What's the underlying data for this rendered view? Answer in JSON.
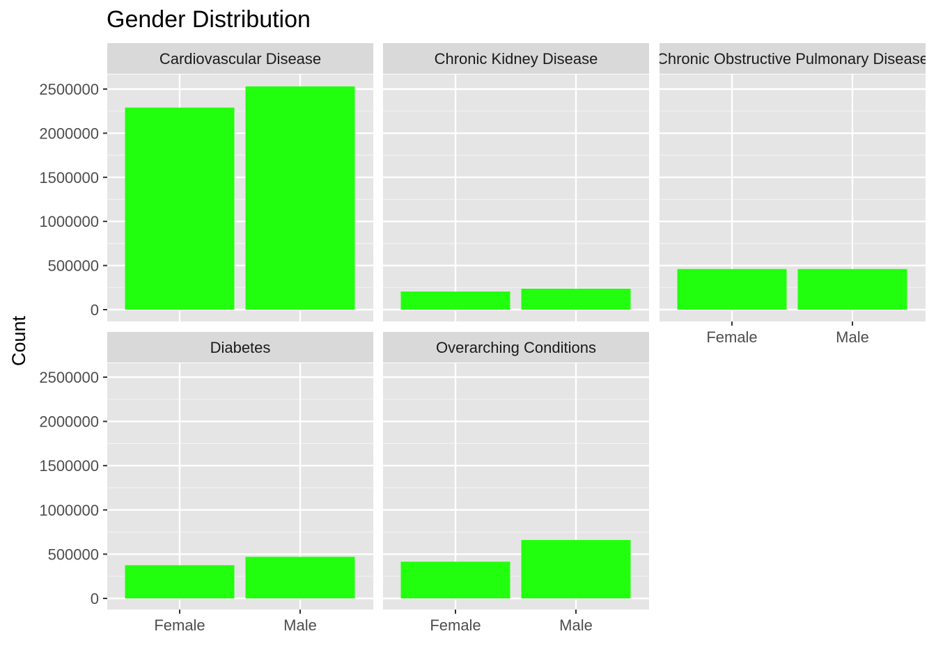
{
  "chart_data": {
    "type": "bar",
    "title": "Gender Distribution",
    "xlabel": "",
    "ylabel": "Count",
    "categories": [
      "Female",
      "Male"
    ],
    "ylim": [
      0,
      2650000
    ],
    "yticks": [
      0,
      500000,
      1000000,
      1500000,
      2000000,
      2500000
    ],
    "ytick_labels": [
      "0",
      "500000",
      "1000000",
      "1500000",
      "2000000",
      "2500000"
    ],
    "grid": true,
    "bar_color": "#22ff0e",
    "panel_background": "#e5e5e5",
    "strip_background": "#d9d9d9",
    "panels": [
      {
        "name": "Cardiovascular Disease",
        "values": [
          2290000,
          2530000
        ]
      },
      {
        "name": "Chronic Kidney Disease",
        "values": [
          205000,
          237000
        ]
      },
      {
        "name": "Chronic Obstructive Pulmonary Disease",
        "values": [
          460000,
          460000
        ]
      },
      {
        "name": "Diabetes",
        "values": [
          375000,
          470000
        ]
      },
      {
        "name": "Overarching Conditions",
        "values": [
          415000,
          660000
        ]
      }
    ]
  }
}
